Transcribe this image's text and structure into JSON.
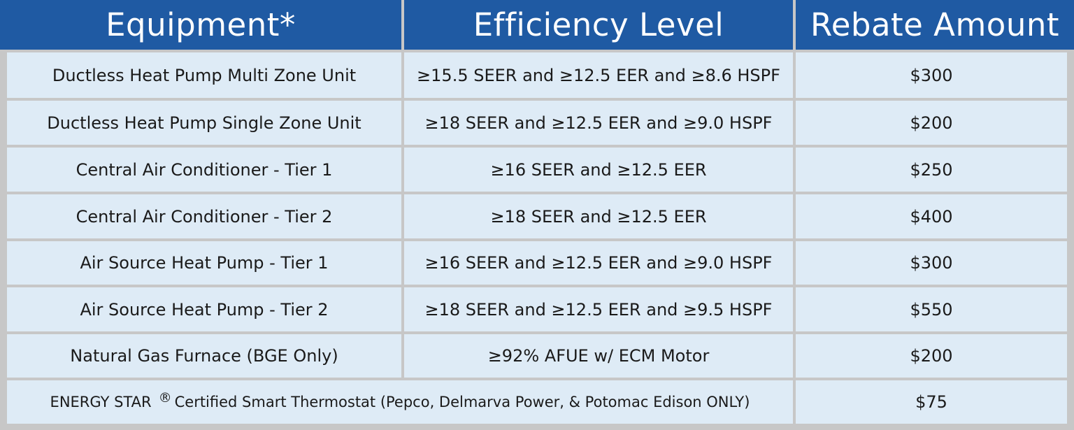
{
  "header": {
    "equipment": "Equipment*",
    "efficiency": "Efficiency Level",
    "rebate": "Rebate Amount"
  },
  "rows": [
    {
      "equipment": "Ductless Heat Pump Multi Zone Unit",
      "efficiency": "≥15.5 SEER and ≥12.5 EER and ≥8.6 HSPF",
      "rebate": "$300"
    },
    {
      "equipment": "Ductless Heat Pump Single Zone Unit",
      "efficiency": "≥18 SEER and ≥12.5 EER and ≥9.0 HSPF",
      "rebate": "$200"
    },
    {
      "equipment": "Central Air Conditioner - Tier 1",
      "efficiency": "≥16 SEER and ≥12.5 EER",
      "rebate": "$250"
    },
    {
      "equipment": "Central Air Conditioner - Tier 2",
      "efficiency": "≥18 SEER and ≥12.5 EER",
      "rebate": "$400"
    },
    {
      "equipment": "Air Source Heat Pump - Tier 1",
      "efficiency": "≥16 SEER and ≥12.5 EER and ≥9.0 HSPF",
      "rebate": "$300"
    },
    {
      "equipment": "Air Source Heat Pump - Tier 2",
      "efficiency": "≥18 SEER and ≥12.5 EER and ≥9.5 HSPF",
      "rebate": "$550"
    },
    {
      "equipment": "Natural Gas Furnace (BGE Only)",
      "efficiency": "≥92% AFUE w/ ECM Motor",
      "rebate": "$200"
    }
  ],
  "footer_row": {
    "brand": "ENERGY STAR",
    "registered_mark": "®",
    "description": "Certified Smart Thermostat (Pepco, Delmarva Power, & Potomac Edison ONLY)",
    "rebate": "$75"
  },
  "colors": {
    "header_bg": "#1f5aa3",
    "cell_bg": "#deebf6",
    "grid": "#c7c7c7"
  }
}
